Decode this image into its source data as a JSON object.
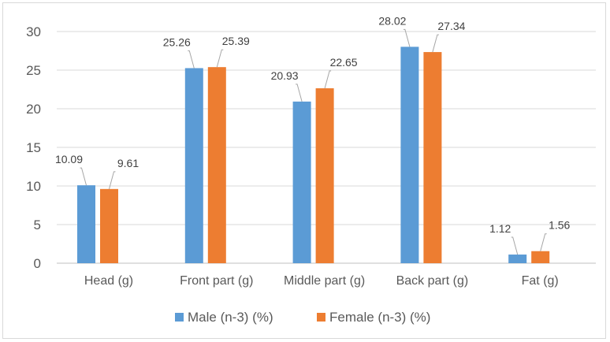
{
  "chart_data": {
    "type": "bar",
    "title": "",
    "xlabel": "",
    "ylabel": "",
    "categories": [
      "Head (g)",
      "Front part (g)",
      "Middle part (g)",
      "Back part (g)",
      "Fat (g)"
    ],
    "series": [
      {
        "name": "Male (n-3) (%)",
        "values": [
          10.09,
          25.26,
          20.93,
          28.02,
          1.12
        ],
        "color": "#5b9bd5"
      },
      {
        "name": "Female (n-3) (%)",
        "values": [
          9.61,
          25.39,
          22.65,
          27.34,
          1.56
        ],
        "color": "#ed7d31"
      }
    ],
    "data_labels": [
      [
        "10.09",
        "25.26",
        "20.93",
        "28.02",
        "1.12"
      ],
      [
        "9.61",
        "25.39",
        "22.65",
        "27.34",
        "1.56"
      ]
    ],
    "ylim": [
      0,
      30
    ],
    "yticks": [
      0,
      5,
      10,
      15,
      20,
      25,
      30
    ],
    "ytick_labels": [
      "0",
      "5",
      "10",
      "15",
      "20",
      "25",
      "30"
    ],
    "grid": true,
    "legend_position": "bottom",
    "grid_color": "#d9d9d9",
    "axis_color": "#bfbfbf"
  }
}
